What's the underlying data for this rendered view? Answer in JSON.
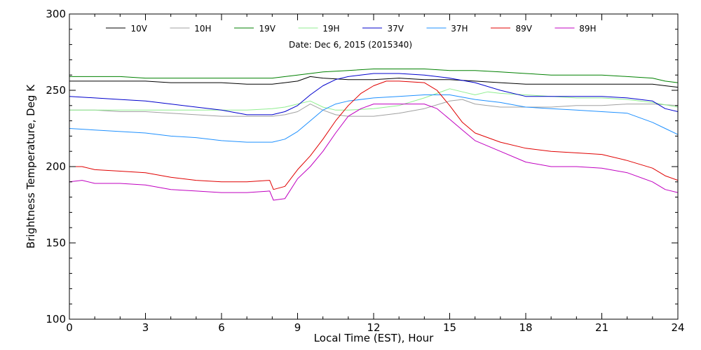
{
  "chart_data": {
    "type": "line",
    "title": "",
    "annotation": "Date: Dec  6, 2015 (2015340)",
    "xlabel": "Local Time (EST), Hour",
    "ylabel": "Brightness Temperature, Deg  K",
    "xlim": [
      0,
      24
    ],
    "ylim": [
      100,
      300
    ],
    "xticks": [
      0,
      3,
      6,
      9,
      12,
      15,
      18,
      21,
      24
    ],
    "xtick_labels": [
      "0",
      "3",
      "6",
      "9",
      "12",
      "15",
      "18",
      "21",
      "24"
    ],
    "yticks": [
      100,
      150,
      200,
      250,
      300
    ],
    "ytick_labels": [
      "100",
      "150",
      "200",
      "250",
      "300"
    ],
    "grid": false,
    "legend_position": "top",
    "series": [
      {
        "name": "10V",
        "color": "#000000",
        "x": [
          0,
          1,
          2,
          3,
          4,
          5,
          6,
          7,
          8,
          8.5,
          9,
          9.5,
          10,
          11,
          12,
          13,
          14,
          15,
          16,
          17,
          18,
          19,
          20,
          21,
          22,
          23,
          23.5,
          24
        ],
        "y": [
          256,
          256,
          256,
          256,
          255,
          255,
          255,
          254,
          254,
          255,
          256,
          259,
          258,
          257,
          257,
          258,
          257,
          257,
          256,
          255,
          254,
          254,
          254,
          254,
          254,
          254,
          253,
          252
        ]
      },
      {
        "name": "10H",
        "color": "#a0a0a0",
        "x": [
          0,
          1,
          2,
          3,
          4,
          5,
          6,
          7,
          8,
          8.5,
          9,
          9.5,
          10,
          10.5,
          11,
          12,
          13,
          14,
          15,
          15.5,
          16,
          17,
          18,
          19,
          20,
          21,
          22,
          23,
          24
        ],
        "y": [
          237,
          237,
          236,
          236,
          235,
          234,
          233,
          233,
          233,
          234,
          236,
          241,
          237,
          234,
          233,
          233,
          235,
          238,
          243,
          244,
          241,
          239,
          239,
          239,
          240,
          240,
          241,
          241,
          240
        ]
      },
      {
        "name": "19V",
        "color": "#008000",
        "x": [
          0,
          1,
          2,
          3,
          4,
          5,
          6,
          7,
          8,
          9,
          10,
          11,
          12,
          13,
          14,
          15,
          16,
          17,
          18,
          19,
          20,
          21,
          22,
          23,
          23.5,
          24
        ],
        "y": [
          259,
          259,
          259,
          258,
          258,
          258,
          258,
          258,
          258,
          260,
          262,
          263,
          264,
          264,
          264,
          263,
          263,
          262,
          261,
          260,
          260,
          260,
          259,
          258,
          256,
          255
        ]
      },
      {
        "name": "19H",
        "color": "#90ee90",
        "x": [
          0,
          1,
          2,
          3,
          4,
          5,
          6,
          7,
          8,
          8.5,
          9,
          9.5,
          10,
          10.5,
          11,
          12,
          13,
          14,
          15,
          15.5,
          16,
          16.5,
          17,
          18,
          19,
          20,
          21,
          22,
          23,
          24
        ],
        "y": [
          237,
          237,
          237,
          237,
          237,
          237,
          237,
          237,
          238,
          239,
          241,
          243,
          239,
          237,
          237,
          238,
          240,
          245,
          251,
          249,
          247,
          249,
          248,
          247,
          246,
          245,
          245,
          244,
          242,
          239
        ]
      },
      {
        "name": "37V",
        "color": "#0000cd",
        "x": [
          0,
          1,
          2,
          3,
          4,
          5,
          6,
          7,
          8,
          8.5,
          9,
          9.5,
          10,
          10.5,
          11,
          12,
          13,
          14,
          15,
          16,
          17,
          18,
          19,
          20,
          21,
          22,
          23,
          23.5,
          24
        ],
        "y": [
          246,
          245,
          244,
          243,
          241,
          239,
          237,
          234,
          234,
          236,
          240,
          247,
          253,
          257,
          259,
          261,
          261,
          260,
          258,
          255,
          250,
          246,
          246,
          246,
          246,
          245,
          243,
          238,
          236
        ]
      },
      {
        "name": "37H",
        "color": "#1e90ff",
        "x": [
          0,
          1,
          2,
          3,
          4,
          5,
          6,
          7,
          8,
          8.5,
          9,
          9.5,
          10,
          10.5,
          11,
          12,
          13,
          14,
          15,
          16,
          17,
          18,
          19,
          20,
          21,
          22,
          23,
          23.5,
          24
        ],
        "y": [
          225,
          224,
          223,
          222,
          220,
          219,
          217,
          216,
          216,
          218,
          223,
          230,
          237,
          241,
          243,
          245,
          246,
          247,
          247,
          244,
          242,
          239,
          238,
          237,
          236,
          235,
          229,
          225,
          221
        ]
      },
      {
        "name": "89V",
        "color": "#e00000",
        "x": [
          0,
          0.5,
          1,
          2,
          3,
          4,
          5,
          6,
          7,
          7.9,
          8.05,
          8.5,
          9,
          9.5,
          10,
          10.5,
          11,
          11.5,
          12,
          12.5,
          13,
          14,
          14.5,
          15,
          15.5,
          16,
          17,
          18,
          19,
          20,
          21,
          22,
          23,
          23.5,
          24
        ],
        "y": [
          200,
          200,
          198,
          197,
          196,
          193,
          191,
          190,
          190,
          191,
          185,
          187,
          198,
          207,
          218,
          230,
          240,
          248,
          253,
          256,
          256,
          255,
          250,
          240,
          229,
          222,
          216,
          212,
          210,
          209,
          208,
          204,
          199,
          194,
          191
        ]
      },
      {
        "name": "89H",
        "color": "#c000c0",
        "x": [
          0,
          0.5,
          1,
          2,
          3,
          4,
          5,
          6,
          7,
          7.9,
          8.05,
          8.5,
          9,
          9.5,
          10,
          10.5,
          11,
          11.5,
          12,
          12.5,
          13,
          14,
          14.5,
          15,
          15.5,
          16,
          17,
          18,
          19,
          20,
          21,
          22,
          23,
          23.5,
          24
        ],
        "y": [
          190,
          191,
          189,
          189,
          188,
          185,
          184,
          183,
          183,
          184,
          178,
          179,
          192,
          200,
          210,
          222,
          233,
          238,
          241,
          241,
          241,
          241,
          238,
          231,
          224,
          217,
          210,
          203,
          200,
          200,
          199,
          196,
          190,
          185,
          183
        ]
      }
    ]
  }
}
